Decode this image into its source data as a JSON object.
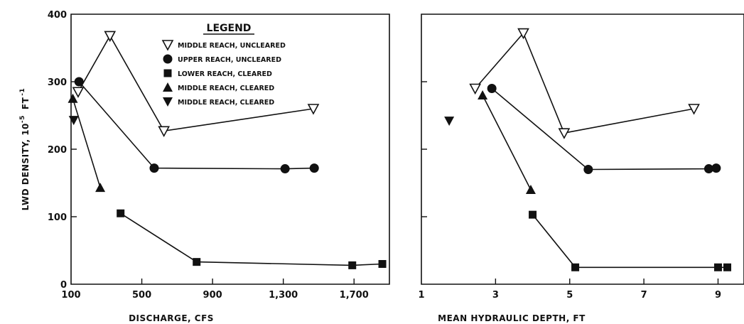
{
  "legend": {
    "title": "LEGEND",
    "entries": [
      {
        "marker": "triangle-down-open",
        "label": "MIDDLE REACH, UNCLEARED"
      },
      {
        "marker": "circle-filled",
        "label": "UPPER REACH, UNCLEARED"
      },
      {
        "marker": "square-filled",
        "label": "LOWER REACH, CLEARED"
      },
      {
        "marker": "triangle-up-filled",
        "label": "MIDDLE REACH, CLEARED"
      },
      {
        "marker": "triangle-down-filled",
        "label": "MIDDLE REACH, CLEARED"
      }
    ]
  },
  "colors": {
    "ink": "#111111",
    "background": "#ffffff"
  },
  "chart_data": [
    {
      "type": "scatter",
      "title": "",
      "xlabel": "DISCHARGE, CFS",
      "ylabel": "LWD DENSITY, 10",
      "ylabel_sup": "-5",
      "ylabel_tail": "FT",
      "ylabel_tail_sup": "-1",
      "xlim": [
        100,
        1900
      ],
      "ylim": [
        0,
        400
      ],
      "xticks": [
        100,
        500,
        900,
        1300,
        1700
      ],
      "xtick_labels": [
        "100",
        "500",
        "900",
        "1,300",
        "1,700"
      ],
      "yticks": [
        0,
        100,
        200,
        300,
        400
      ],
      "ytick_labels": [
        "0",
        "100",
        "200",
        "300",
        "400"
      ],
      "series": [
        {
          "name": "MIDDLE REACH, UNCLEARED",
          "marker": "triangle-down-open",
          "connected": true,
          "points": [
            [
              140,
              285
            ],
            [
              320,
              368
            ],
            [
              625,
              227
            ],
            [
              1470,
              260
            ]
          ]
        },
        {
          "name": "UPPER REACH, UNCLEARED",
          "marker": "circle-filled",
          "connected": true,
          "points": [
            [
              145,
              300
            ],
            [
              570,
              172
            ],
            [
              1310,
              171
            ],
            [
              1475,
              172
            ]
          ]
        },
        {
          "name": "LOWER REACH, CLEARED",
          "marker": "square-filled",
          "connected": true,
          "points": [
            [
              380,
              105
            ],
            [
              810,
              33
            ],
            [
              1690,
              28
            ],
            [
              1860,
              30
            ]
          ]
        },
        {
          "name": "MIDDLE REACH, CLEARED",
          "marker": "triangle-up-filled",
          "connected": true,
          "points": [
            [
              110,
              275
            ],
            [
              265,
              143
            ]
          ]
        },
        {
          "name": "MIDDLE REACH, CLEARED",
          "marker": "triangle-down-filled",
          "connected": false,
          "points": [
            [
              115,
              243
            ]
          ]
        }
      ]
    },
    {
      "type": "scatter",
      "title": "",
      "xlabel": "MEAN HYDRAULIC DEPTH, FT",
      "ylabel": "",
      "xlim": [
        1,
        9.7
      ],
      "ylim": [
        0,
        400
      ],
      "xticks": [
        1,
        3,
        5,
        7,
        9
      ],
      "xtick_labels": [
        "1",
        "3",
        "5",
        "7",
        "9"
      ],
      "yticks": [
        0,
        100,
        200,
        300,
        400
      ],
      "ytick_labels": [],
      "series": [
        {
          "name": "MIDDLE REACH, UNCLEARED",
          "marker": "triangle-down-open",
          "connected": true,
          "points": [
            [
              2.45,
              290
            ],
            [
              3.75,
              372
            ],
            [
              4.85,
              224
            ],
            [
              8.35,
              260
            ]
          ]
        },
        {
          "name": "UPPER REACH, UNCLEARED",
          "marker": "circle-filled",
          "connected": true,
          "points": [
            [
              2.9,
              290
            ],
            [
              5.5,
              170
            ],
            [
              8.75,
              171
            ],
            [
              8.95,
              172
            ]
          ]
        },
        {
          "name": "LOWER REACH, CLEARED",
          "marker": "square-filled",
          "connected": true,
          "points": [
            [
              4.0,
              103
            ],
            [
              5.15,
              25
            ],
            [
              9.0,
              25
            ],
            [
              9.25,
              25
            ]
          ]
        },
        {
          "name": "MIDDLE REACH, CLEARED",
          "marker": "triangle-up-filled",
          "connected": true,
          "points": [
            [
              2.65,
              280
            ],
            [
              3.95,
              140
            ]
          ]
        },
        {
          "name": "MIDDLE REACH, CLEARED",
          "marker": "triangle-down-filled",
          "connected": false,
          "points": [
            [
              1.75,
              242
            ]
          ]
        }
      ]
    }
  ]
}
